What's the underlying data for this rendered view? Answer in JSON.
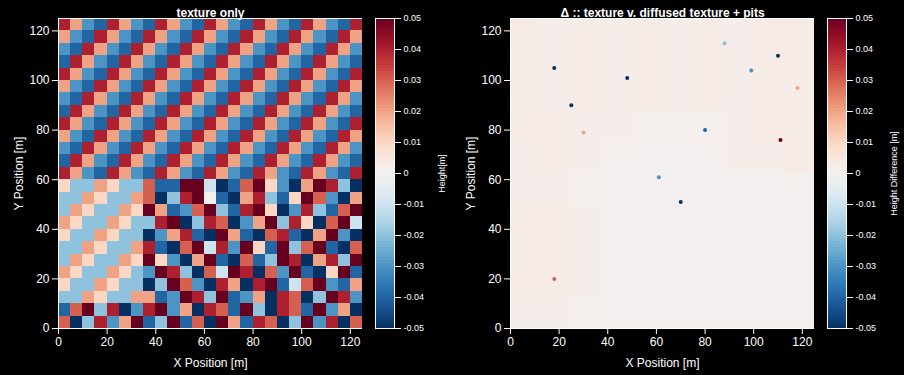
{
  "chart_data": [
    {
      "type": "heatmap",
      "title": "texture only",
      "x_label": "X Position [m]",
      "y_label": "Y Position [m]",
      "xlim": [
        0,
        125
      ],
      "ylim": [
        0,
        125
      ],
      "xticks": [
        0,
        20,
        40,
        60,
        80,
        100,
        120
      ],
      "yticks": [
        0,
        20,
        40,
        60,
        80,
        100,
        120
      ],
      "x_edges": [
        0,
        5,
        10,
        15,
        20,
        25,
        30,
        35,
        40,
        45,
        50,
        55,
        60,
        65,
        70,
        75,
        80,
        85,
        90,
        95,
        100,
        105,
        110,
        115,
        120,
        125
      ],
      "y_edges": [
        125,
        120,
        115,
        110,
        105,
        100,
        95,
        90,
        85,
        80,
        75,
        70,
        65,
        60,
        55,
        50,
        45,
        40,
        35,
        30,
        25,
        20,
        15,
        10,
        5,
        0
      ],
      "z": [
        [
          0.04,
          0.02,
          -0.03,
          -0.04,
          0.04,
          0.02,
          -0.03,
          -0.04,
          0.04,
          0.02,
          -0.03,
          -0.04,
          0.04,
          0.02,
          -0.03,
          -0.04,
          0.04,
          0.02,
          -0.03,
          -0.04,
          0.04,
          0.02,
          -0.03,
          -0.04,
          0.04
        ],
        [
          0.02,
          -0.03,
          -0.04,
          0.04,
          0.02,
          -0.03,
          -0.04,
          0.04,
          0.02,
          -0.03,
          -0.04,
          0.04,
          0.02,
          -0.03,
          -0.04,
          0.04,
          0.02,
          -0.03,
          -0.04,
          0.04,
          0.02,
          -0.03,
          -0.04,
          0.04,
          0.02
        ],
        [
          -0.03,
          -0.04,
          0.04,
          0.02,
          -0.03,
          -0.04,
          0.04,
          0.02,
          -0.03,
          -0.04,
          0.04,
          0.02,
          -0.03,
          -0.04,
          0.04,
          0.02,
          -0.03,
          -0.04,
          0.04,
          0.02,
          -0.03,
          -0.04,
          0.04,
          0.02,
          -0.03
        ],
        [
          -0.04,
          0.04,
          0.02,
          -0.03,
          -0.04,
          0.04,
          0.02,
          -0.03,
          -0.04,
          0.04,
          0.02,
          -0.03,
          -0.04,
          0.04,
          0.02,
          -0.03,
          -0.04,
          0.04,
          0.02,
          -0.03,
          -0.04,
          0.04,
          0.02,
          -0.03,
          -0.04
        ],
        [
          0.04,
          0.02,
          -0.03,
          -0.04,
          0.04,
          0.02,
          -0.03,
          -0.04,
          0.04,
          0.02,
          -0.03,
          -0.04,
          0.04,
          0.02,
          -0.03,
          -0.04,
          0.04,
          0.02,
          -0.03,
          -0.04,
          0.04,
          0.02,
          -0.03,
          -0.04,
          0.04
        ],
        [
          0.02,
          -0.03,
          -0.04,
          0.04,
          0.02,
          -0.03,
          -0.04,
          0.04,
          0.02,
          -0.03,
          -0.04,
          0.04,
          0.02,
          -0.03,
          -0.04,
          0.04,
          0.02,
          -0.03,
          -0.04,
          0.04,
          0.02,
          -0.03,
          -0.04,
          0.04,
          0.02
        ],
        [
          -0.03,
          -0.04,
          0.04,
          0.02,
          -0.03,
          -0.04,
          0.04,
          0.02,
          -0.03,
          -0.04,
          0.04,
          0.02,
          -0.03,
          -0.04,
          0.04,
          0.02,
          -0.03,
          -0.04,
          0.04,
          0.02,
          -0.03,
          -0.04,
          0.04,
          0.02,
          -0.03
        ],
        [
          -0.04,
          0.04,
          0.02,
          -0.03,
          -0.04,
          0.04,
          0.02,
          -0.03,
          -0.04,
          0.04,
          0.02,
          -0.03,
          -0.04,
          0.04,
          0.02,
          -0.03,
          -0.04,
          0.04,
          0.02,
          -0.03,
          -0.04,
          0.04,
          0.02,
          -0.03,
          -0.04
        ],
        [
          0.04,
          0.02,
          -0.03,
          -0.04,
          0.04,
          0.02,
          -0.03,
          -0.04,
          0.04,
          0.02,
          -0.03,
          -0.04,
          0.04,
          0.02,
          -0.03,
          -0.04,
          0.04,
          0.02,
          -0.03,
          -0.04,
          0.04,
          0.02,
          -0.03,
          -0.04,
          0.04
        ],
        [
          0.02,
          -0.03,
          -0.04,
          0.04,
          0.02,
          -0.03,
          -0.04,
          0.04,
          0.02,
          -0.03,
          -0.04,
          0.04,
          0.02,
          -0.03,
          -0.04,
          0.04,
          0.02,
          -0.03,
          -0.04,
          0.04,
          0.02,
          -0.03,
          -0.04,
          0.04,
          0.02
        ],
        [
          -0.03,
          -0.04,
          0.04,
          0.02,
          -0.03,
          -0.04,
          0.04,
          0.02,
          -0.03,
          -0.04,
          0.04,
          0.02,
          -0.03,
          -0.04,
          0.04,
          0.02,
          -0.03,
          -0.04,
          0.04,
          0.02,
          -0.03,
          -0.04,
          0.04,
          0.02,
          -0.03
        ],
        [
          -0.04,
          0.04,
          0.02,
          -0.03,
          -0.04,
          0.04,
          0.02,
          -0.03,
          -0.04,
          0.04,
          0.02,
          -0.03,
          -0.04,
          0.04,
          0.02,
          -0.03,
          -0.04,
          0.04,
          0.02,
          -0.03,
          -0.04,
          0.04,
          0.02,
          -0.03,
          -0.04
        ],
        [
          0.04,
          0.02,
          -0.03,
          -0.04,
          0.04,
          0.02,
          -0.03,
          -0.04,
          0.04,
          0.02,
          -0.03,
          -0.04,
          0.04,
          0.02,
          -0.03,
          -0.04,
          0.04,
          0.02,
          -0.03,
          -0.04,
          0.04,
          0.02,
          -0.03,
          -0.04,
          0.04
        ],
        [
          0.01,
          -0.02,
          -0.02,
          0.02,
          0.01,
          -0.02,
          -0.02,
          0.03,
          -0.04,
          -0.04,
          0.05,
          0.05,
          -0.01,
          -0.05,
          -0.04,
          0.03,
          0.05,
          0.01,
          -0.03,
          -0.05,
          0.02,
          0.05,
          0.04,
          -0.02,
          -0.05
        ],
        [
          -0.02,
          -0.02,
          0.02,
          0.01,
          -0.02,
          -0.02,
          0.02,
          0.03,
          -0.05,
          -0.02,
          0.04,
          0.05,
          0,
          -0.04,
          -0.05,
          0.02,
          0.04,
          -0.02,
          -0.04,
          0.01,
          0.05,
          0.03,
          -0.03,
          -0.05,
          0.02
        ],
        [
          -0.02,
          0.02,
          0.01,
          -0.02,
          -0.02,
          0.02,
          0.01,
          0.05,
          0.02,
          -0.04,
          -0.03,
          0.03,
          0.05,
          -0.02,
          -0.04,
          0.04,
          0.05,
          0.01,
          -0.05,
          -0.03,
          0.04,
          -0.02,
          -0.04,
          0.03,
          0.05
        ],
        [
          0.02,
          0.01,
          -0.02,
          -0.02,
          0.02,
          0.01,
          -0.02,
          -0.02,
          0.04,
          0.05,
          -0.05,
          -0.02,
          0.04,
          0.03,
          -0.05,
          -0.03,
          0.02,
          0.05,
          -0.02,
          0.04,
          0.01,
          -0.05,
          0.03,
          0.05,
          -0.01
        ],
        [
          0.01,
          -0.02,
          -0.02,
          0.02,
          0.01,
          -0.02,
          -0.02,
          -0.05,
          -0.03,
          0.02,
          0.04,
          -0.04,
          -0.05,
          0.05,
          0.02,
          -0.04,
          -0.05,
          0.03,
          0.04,
          -0.04,
          -0.05,
          0.02,
          0.05,
          -0.03,
          -0.05
        ],
        [
          -0.02,
          -0.02,
          0.02,
          0.01,
          -0.02,
          -0.02,
          0.02,
          0.04,
          -0.04,
          -0.05,
          0.03,
          0.05,
          -0.01,
          0.04,
          -0.03,
          0.05,
          0.01,
          -0.04,
          0.05,
          -0.02,
          0.03,
          0.05,
          -0.04,
          -0.05,
          0.03
        ],
        [
          -0.02,
          0.02,
          0.01,
          -0.02,
          -0.02,
          0.02,
          0.01,
          0.05,
          0.01,
          -0.03,
          -0.05,
          0.02,
          0.05,
          -0.04,
          -0.05,
          0.03,
          -0.04,
          -0.02,
          0.05,
          0.04,
          -0.05,
          0.02,
          0.04,
          -0.02,
          0.05
        ],
        [
          0.02,
          0.01,
          -0.02,
          -0.02,
          0.02,
          0.01,
          -0.02,
          -0.03,
          0.05,
          0.04,
          -0.02,
          -0.05,
          0.03,
          -0.01,
          0.05,
          0.04,
          -0.05,
          0.03,
          -0.03,
          0.05,
          -0.04,
          -0.05,
          0.01,
          0.05,
          -0.04
        ],
        [
          0.01,
          -0.02,
          -0.02,
          0.02,
          0.01,
          -0.02,
          -0.02,
          -0.05,
          -0.02,
          0.05,
          0.03,
          -0.03,
          -0.05,
          0.04,
          0.02,
          -0.05,
          0.04,
          0.05,
          -0.04,
          -0.01,
          0.03,
          0.05,
          -0.03,
          -0.04,
          0.02
        ],
        [
          -0.02,
          -0.02,
          0.02,
          0.01,
          -0.02,
          -0.02,
          0.02,
          0.02,
          -0.04,
          -0.03,
          0.05,
          0.04,
          -0.02,
          0.05,
          -0.04,
          -0.03,
          0.02,
          -0.05,
          0.04,
          0.03,
          -0.05,
          -0.02,
          0.05,
          0.04,
          -0.03
        ],
        [
          -0.04,
          0.03,
          0.05,
          -0.02,
          0.04,
          -0.05,
          -0.03,
          0.04,
          0.05,
          -0.03,
          0.02,
          -0.05,
          0.04,
          0.03,
          -0.04,
          0.05,
          -0.02,
          -0.05,
          0.04,
          0.03,
          -0.04,
          0.05,
          -0.03,
          0.02,
          -0.05
        ],
        [
          0.03,
          -0.05,
          -0.02,
          0.04,
          -0.03,
          0.02,
          0.05,
          -0.04,
          -0.02,
          0.05,
          -0.04,
          0.03,
          -0.05,
          0.05,
          0.02,
          -0.04,
          0.04,
          0.03,
          -0.05,
          -0.02,
          0.05,
          -0.03,
          0.04,
          -0.05,
          0.03
        ]
      ],
      "colorbar": {
        "label": "Height[m]",
        "range": [
          -0.05,
          0.05
        ],
        "ticks": [
          -0.05,
          -0.04,
          -0.03,
          -0.02,
          -0.01,
          0,
          0.01,
          0.02,
          0.03,
          0.04,
          0.05
        ]
      }
    },
    {
      "type": "heatmap",
      "title": "Δ :: texture v. diffused texture + pits",
      "x_label": "X Position [m]",
      "y_label": "Y Position [m]",
      "xlim": [
        0,
        125
      ],
      "ylim": [
        0,
        125
      ],
      "xticks": [
        0,
        20,
        40,
        60,
        80,
        100,
        120
      ],
      "yticks": [
        0,
        20,
        40,
        60,
        80,
        100,
        120
      ],
      "x_edges": [
        0,
        12.5,
        25,
        37.5,
        50,
        62.5,
        75,
        87.5,
        100,
        112.5,
        125
      ],
      "y_edges": [
        125,
        112.5,
        100,
        87.5,
        75,
        62.5,
        50,
        37.5,
        25,
        12.5,
        0
      ],
      "z": [
        [
          0.003,
          0.002,
          0.003,
          0.002,
          0.003,
          0.002,
          0.003,
          0.002,
          0.003,
          0.003
        ],
        [
          0.003,
          0.002,
          0.003,
          0.002,
          0.003,
          0.002,
          0.003,
          0.002,
          0.003,
          0.003
        ],
        [
          0.003,
          0.002,
          0.003,
          0.002,
          0.003,
          0.002,
          0.003,
          0.002,
          0.003,
          0.003
        ],
        [
          0.003,
          0.003,
          0.002,
          0.002,
          0.001,
          0.001,
          0.001,
          0.002,
          0.003,
          0.003
        ],
        [
          0.002,
          0.003,
          0.002,
          0.001,
          0,
          0,
          0.001,
          0.002,
          0.002,
          0.003
        ],
        [
          0.002,
          0.002,
          0.001,
          0,
          0,
          0,
          0,
          0,
          0,
          0.001
        ],
        [
          0.003,
          0.003,
          0.002,
          0,
          0,
          0,
          0,
          0,
          0,
          0
        ],
        [
          0.003,
          0.003,
          0.002,
          0,
          0,
          0,
          0,
          0,
          0,
          0
        ],
        [
          0.003,
          0.003,
          0.002,
          0,
          0,
          0,
          0,
          0,
          0,
          0
        ],
        [
          0.002,
          0.002,
          0.001,
          0,
          0,
          0,
          0,
          0,
          0,
          0
        ]
      ],
      "pits": {
        "x": [
          18,
          48,
          25,
          110,
          80,
          111,
          30,
          61,
          70,
          99,
          18,
          88,
          118
        ],
        "y": [
          105,
          101,
          90,
          110,
          80,
          76,
          79,
          61,
          51,
          104,
          20,
          115,
          97
        ],
        "values": [
          -0.05,
          -0.05,
          -0.05,
          -0.05,
          -0.04,
          0.05,
          0.02,
          -0.03,
          -0.05,
          -0.03,
          0.03,
          -0.02,
          0.02
        ]
      },
      "colorbar": {
        "label": "Height Difference [m]",
        "range": [
          -0.05,
          0.05
        ],
        "ticks": [
          -0.05,
          -0.04,
          -0.03,
          -0.02,
          -0.01,
          0,
          0.01,
          0.02,
          0.03,
          0.04,
          0.05
        ]
      }
    }
  ]
}
